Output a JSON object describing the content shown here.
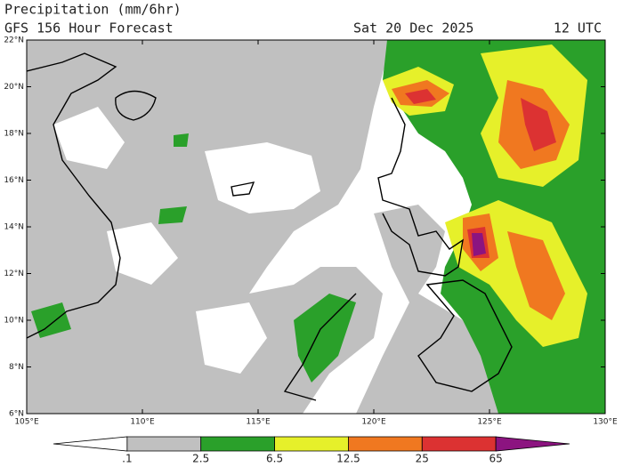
{
  "header": {
    "title": "Precipitation (mm/6hr)",
    "subtitle": "GFS 156 Hour Forecast",
    "date": "Sat 20 Dec 2025",
    "time": "12 UTC"
  },
  "map": {
    "lat_labels": [
      "22°N",
      "20°N",
      "18°N",
      "16°N",
      "14°N",
      "12°N",
      "10°N",
      "8°N",
      "6°N"
    ],
    "lon_labels": [
      "105°E",
      "110°E",
      "115°E",
      "120°E",
      "125°E",
      "130°E"
    ]
  },
  "legend": {
    "labels": [
      ".1",
      "2.5",
      "6.5",
      "12.5",
      "25",
      "65"
    ],
    "colors": [
      "#ffffff",
      "#c0c0c0",
      "#2aa02a",
      "#e6f02a",
      "#f07820",
      "#dc3232",
      "#8c1480"
    ]
  }
}
